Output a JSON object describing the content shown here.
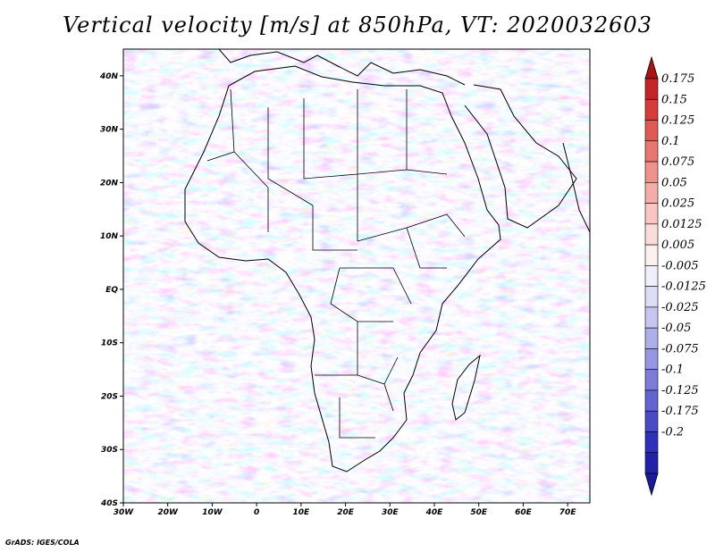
{
  "title": "Vertical velocity [m/s] at 850hPa, VT: 2020032603",
  "credit": "GrADS: IGES/COLA",
  "map": {
    "lon_range": [
      -30,
      75
    ],
    "lat_range": [
      -40,
      45
    ],
    "lon_ticks": [
      "30W",
      "20W",
      "10W",
      "0",
      "10E",
      "20E",
      "30E",
      "40E",
      "50E",
      "60E",
      "70E"
    ],
    "lat_ticks": [
      "40N",
      "30N",
      "20N",
      "10N",
      "EQ",
      "10S",
      "20S",
      "30S",
      "40S"
    ],
    "field": "vertical velocity",
    "land_outlines": true
  },
  "colorbar": {
    "labels": [
      "0.175",
      "0.15",
      "0.125",
      "0.1",
      "0.075",
      "0.05",
      "0.025",
      "0.0125",
      "0.005",
      "-0.005",
      "-0.0125",
      "-0.025",
      "-0.05",
      "-0.075",
      "-0.1",
      "-0.125",
      "-0.175",
      "-0.2"
    ],
    "colors": [
      "#c42527",
      "#d53d3b",
      "#e05a55",
      "#e87570",
      "#ef928c",
      "#f4ada8",
      "#f7c6c2",
      "#fadcd9",
      "#fdf1f0",
      "#f0f0fb",
      "#dcdcf6",
      "#c6c6f0",
      "#aeaeea",
      "#9696e2",
      "#7d7dd9",
      "#6464d0",
      "#4a4ac5",
      "#3030b8",
      "#2222a8"
    ],
    "top_arrow_color": "#aa1418",
    "bottom_arrow_color": "#1a1a9a"
  }
}
